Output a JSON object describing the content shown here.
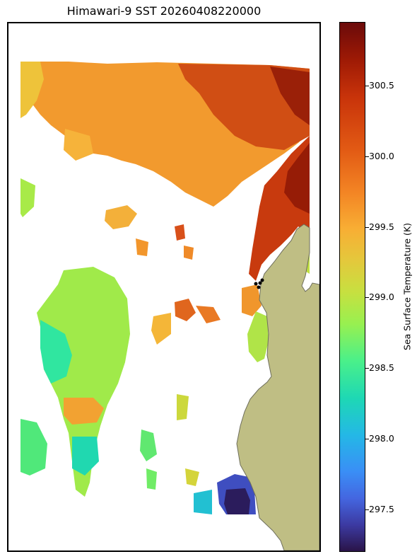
{
  "title": "Himawari-9 SST 20260408220000",
  "colorbar": {
    "label": "Sea Surface Temperature (K)",
    "range": [
      297.2,
      300.95
    ],
    "ticks": [
      "297.5",
      "298.0",
      "298.5",
      "299.0",
      "299.5",
      "300.0",
      "300.5"
    ]
  },
  "map": {
    "land_color": "#bfbe84",
    "coast_color": "#6e6e5c",
    "station_marker_color": "#000000",
    "station_count": 4
  }
}
